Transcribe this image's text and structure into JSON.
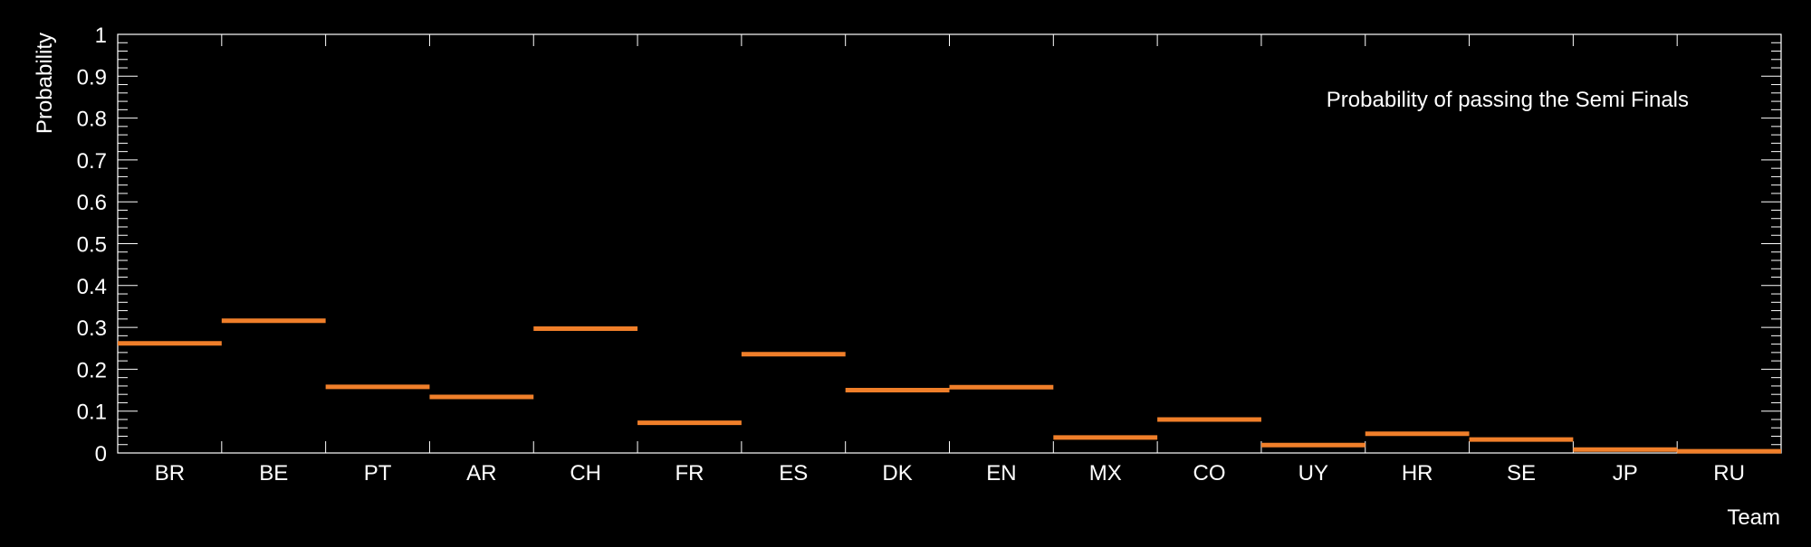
{
  "chart_data": {
    "type": "bar",
    "title": "Probability of passing the Semi Finals",
    "xlabel": "Team",
    "ylabel": "Probability",
    "ylim": [
      0,
      1
    ],
    "yticks": [
      "0",
      "0.1",
      "0.2",
      "0.3",
      "0.4",
      "0.5",
      "0.6",
      "0.7",
      "0.8",
      "0.9",
      "1"
    ],
    "categories": [
      "BR",
      "BE",
      "PT",
      "AR",
      "CH",
      "FR",
      "ES",
      "DK",
      "EN",
      "MX",
      "CO",
      "UY",
      "HR",
      "SE",
      "JP",
      "RU"
    ],
    "values": [
      0.262,
      0.316,
      0.158,
      0.134,
      0.297,
      0.072,
      0.236,
      0.15,
      0.157,
      0.037,
      0.08,
      0.019,
      0.046,
      0.032,
      0.008,
      0.004
    ],
    "grid": false,
    "legend": "top-right",
    "colors": {
      "background": "#000000",
      "axis": "#ffffff",
      "text": "#ffffff",
      "series": "#f07f2a"
    }
  }
}
